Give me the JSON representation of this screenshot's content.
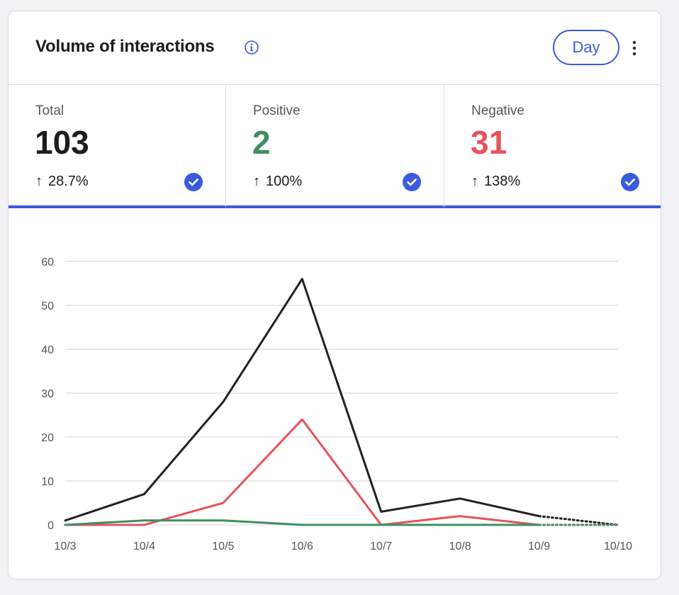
{
  "header": {
    "title": "Volume of interactions",
    "period_button": "Day",
    "info_icon": "info-circle-icon",
    "menu_icon": "kebab-menu-icon"
  },
  "stats": [
    {
      "label": "Total",
      "value": "103",
      "change": "28.7%",
      "direction": "up",
      "color": "#1d1d20",
      "selected": true
    },
    {
      "label": "Positive",
      "value": "2",
      "change": "100%",
      "direction": "up",
      "color": "#3f8f62",
      "selected": true
    },
    {
      "label": "Negative",
      "value": "31",
      "change": "138%",
      "direction": "up",
      "color": "#e5545b",
      "selected": true
    }
  ],
  "colors": {
    "accent": "#3b5bdb",
    "total": "#222222",
    "positive": "#3f8f62",
    "negative": "#e5545b"
  },
  "chart_data": {
    "type": "line",
    "x": [
      "10/3",
      "10/4",
      "10/5",
      "10/6",
      "10/7",
      "10/8",
      "10/9",
      "10/10"
    ],
    "ylim": [
      0,
      60
    ],
    "yticks": [
      0,
      10,
      20,
      30,
      40,
      50,
      60
    ],
    "grid": true,
    "legend": "none",
    "partial_last_segment": "dotted",
    "series": [
      {
        "key": "total",
        "color": "#222222",
        "values": [
          1,
          7,
          28,
          56,
          3,
          6,
          2,
          0
        ]
      },
      {
        "key": "negative",
        "color": "#e5545b",
        "values": [
          0,
          0,
          5,
          24,
          0,
          2,
          0,
          0
        ]
      },
      {
        "key": "positive",
        "color": "#3f8f62",
        "values": [
          0,
          1,
          1,
          0,
          0,
          0,
          0,
          0
        ]
      }
    ]
  }
}
